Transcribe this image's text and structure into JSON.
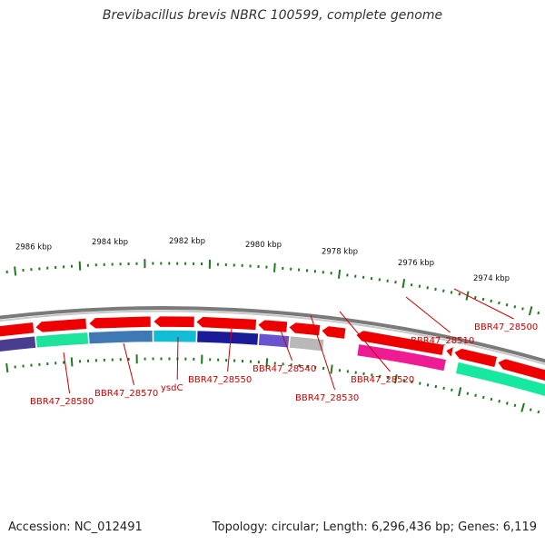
{
  "header": {
    "title": "Brevibacillus brevis NBRC 100599, complete genome"
  },
  "footer": {
    "accession": "Accession: NC_012491",
    "summary": "Topology: circular; Length: 6,296,436 bp; Genes: 6,119"
  },
  "colors": {
    "backbone": "#7a7a7a",
    "forward_gene": "#ee0000",
    "tick": "#1f7a1f",
    "label": "#cc0000"
  },
  "ticks": [
    "2986 kbp",
    "2984 kbp",
    "2982 kbp",
    "2980 kbp",
    "2978 kbp",
    "2976 kbp",
    "2974 kbp"
  ],
  "genes": [
    "BBR47_28580",
    "BBR47_28570",
    "ysdC",
    "BBR47_28550",
    "BBR47_28540",
    "BBR47_28530",
    "BBR47_28520",
    "BBR47_28510",
    "BBR47_28500"
  ]
}
